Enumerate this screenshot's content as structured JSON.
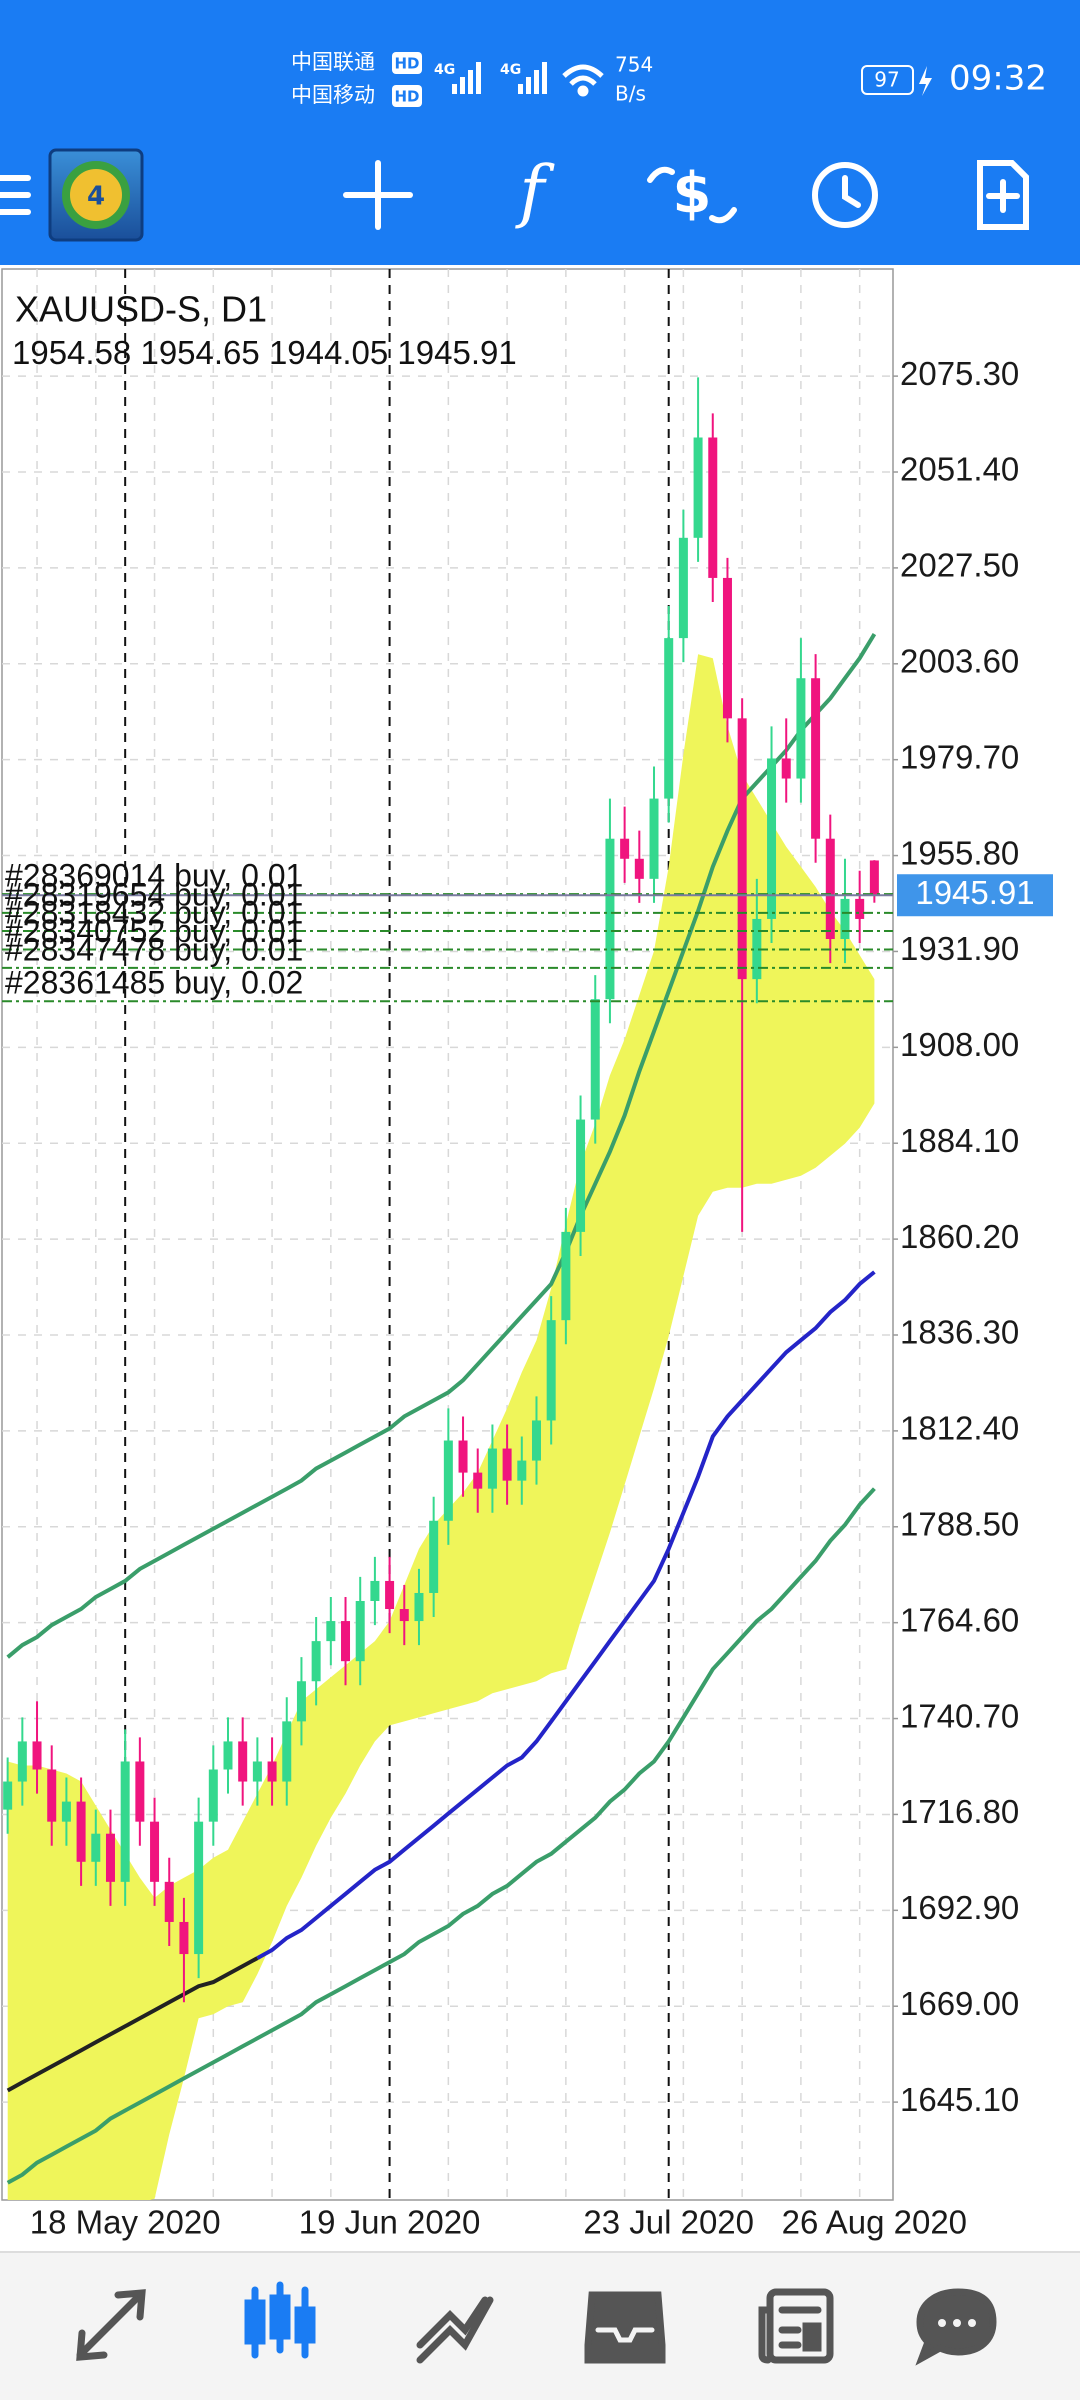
{
  "status_bar": {
    "carrier1": "中国联通",
    "carrier2": "中国移动",
    "hd": "HD",
    "network": "4G",
    "speed": "754",
    "speed_unit": "B/s",
    "battery": "97",
    "time": "09:32"
  },
  "chart_data": {
    "type": "candlestick",
    "title": "XAUUSD-S, D1",
    "categories": [
      null,
      null,
      null,
      null,
      null,
      null,
      null,
      null,
      "18 May 2020",
      null,
      null,
      null,
      null,
      null,
      null,
      null,
      null,
      null,
      null,
      null,
      null,
      null,
      null,
      null,
      null,
      null,
      "19 Jun 2020",
      null,
      null,
      null,
      null,
      null,
      null,
      null,
      null,
      null,
      null,
      null,
      null,
      null,
      null,
      null,
      null,
      null,
      null,
      "23 Jul 2020",
      null,
      null,
      null,
      null,
      null,
      null,
      null,
      null,
      null,
      null,
      null,
      null,
      null,
      "26 Aug 2020"
    ],
    "open": [
      1718,
      1725,
      1735,
      1728,
      1715,
      1720,
      1705,
      1712,
      1700,
      1730,
      1715,
      1700,
      1690,
      1682,
      1715,
      1728,
      1735,
      1725,
      1730,
      1725,
      1740,
      1750,
      1760,
      1765,
      1755,
      1770,
      1775,
      1768,
      1765,
      1772,
      1790,
      1810,
      1802,
      1798,
      1808,
      1800,
      1805,
      1815,
      1840,
      1862,
      1890,
      1920,
      1960,
      1955,
      1950,
      1970,
      2010,
      2035,
      2060,
      2025,
      1990,
      1925,
      1940,
      1980,
      1975,
      2000,
      1960,
      1935,
      1945,
      1954.58
    ],
    "high": [
      1731,
      1741,
      1745,
      1734,
      1726,
      1726,
      1718,
      1718,
      1738,
      1736,
      1721,
      1706,
      1696,
      1721,
      1734,
      1741,
      1741,
      1736,
      1736,
      1746,
      1756,
      1766,
      1771,
      1771,
      1776,
      1781,
      1781,
      1774,
      1778,
      1796,
      1818,
      1816,
      1808,
      1814,
      1814,
      1811,
      1821,
      1846,
      1868,
      1896,
      1926,
      1970,
      1968,
      1962,
      1978,
      2018,
      2042,
      2075,
      2066,
      2030,
      1995,
      1950,
      1988,
      1990,
      2010,
      2006,
      1966,
      1955,
      1952,
      1954.65
    ],
    "low": [
      1712,
      1719,
      1722,
      1709,
      1709,
      1699,
      1699,
      1694,
      1694,
      1709,
      1694,
      1684,
      1670,
      1676,
      1709,
      1722,
      1719,
      1719,
      1719,
      1719,
      1734,
      1744,
      1754,
      1749,
      1749,
      1764,
      1762,
      1759,
      1759,
      1766,
      1784,
      1796,
      1792,
      1792,
      1794,
      1794,
      1799,
      1809,
      1834,
      1856,
      1884,
      1914,
      1949,
      1944,
      1944,
      1964,
      2004,
      2029,
      2019,
      1984,
      1862,
      1919,
      1934,
      1969,
      1969,
      1954,
      1929,
      1929,
      1934,
      1944.05
    ],
    "close": [
      1725,
      1735,
      1728,
      1715,
      1720,
      1705,
      1712,
      1700,
      1730,
      1715,
      1700,
      1690,
      1682,
      1715,
      1728,
      1735,
      1725,
      1730,
      1725,
      1740,
      1750,
      1760,
      1765,
      1755,
      1770,
      1775,
      1768,
      1765,
      1772,
      1790,
      1810,
      1802,
      1798,
      1808,
      1800,
      1805,
      1815,
      1840,
      1862,
      1890,
      1920,
      1960,
      1955,
      1950,
      1970,
      2010,
      2035,
      2060,
      2025,
      1990,
      1925,
      1940,
      1980,
      1975,
      2000,
      1960,
      1935,
      1945,
      1940,
      1945.91
    ],
    "up_color": "#34d88e",
    "down_color": "#f0147e",
    "cloud": {
      "color": "#eff55a",
      "upper": [
        1730,
        1729,
        1729,
        1728,
        1727,
        1725,
        1719,
        1713,
        1707,
        1701,
        1696,
        1699,
        1701,
        1703,
        1706,
        1708,
        1715,
        1722,
        1729,
        1737,
        1745,
        1748,
        1751,
        1754,
        1757,
        1760,
        1765,
        1774,
        1783,
        1789,
        1793,
        1797,
        1802,
        1810,
        1818,
        1827,
        1835,
        1848,
        1864,
        1879,
        1889,
        1901,
        1910,
        1921,
        1932,
        1953,
        1981,
        2006,
        2005,
        1988,
        1976,
        1970,
        1964,
        1958,
        1953,
        1948,
        1942,
        1937,
        1931,
        1925
      ],
      "lower": [
        1616,
        1617,
        1617,
        1617,
        1618,
        1618,
        1619,
        1619,
        1619,
        1620,
        1621,
        1637,
        1651,
        1666,
        1667,
        1669,
        1670,
        1677,
        1685,
        1694,
        1701,
        1709,
        1716,
        1722,
        1729,
        1735,
        1739,
        1740,
        1741,
        1742,
        1743,
        1744,
        1745,
        1747,
        1748,
        1749,
        1750,
        1752,
        1753,
        1765,
        1776,
        1787,
        1799,
        1811,
        1823,
        1836,
        1851,
        1866,
        1872,
        1873,
        1873,
        1874,
        1874,
        1875,
        1876,
        1878,
        1881,
        1884,
        1888,
        1894
      ]
    },
    "indicators": [
      {
        "color": "#3a9e6a",
        "values": [
          1756,
          1759,
          1761,
          1764,
          1766,
          1768,
          1771,
          1773,
          1775,
          1778,
          1780,
          1782,
          1784,
          1786,
          1788,
          1790,
          1792,
          1794,
          1796,
          1798,
          1800,
          1803,
          1805,
          1807,
          1809,
          1811,
          1813,
          1816,
          1818,
          1820,
          1822,
          1825,
          1829,
          1833,
          1837,
          1841,
          1845,
          1849,
          1857,
          1866,
          1874,
          1882,
          1891,
          1902,
          1912,
          1922,
          1932,
          1942,
          1953,
          1962,
          1970,
          1974,
          1978,
          1982,
          1987,
          1991,
          1995,
          2000,
          2005,
          2011
        ]
      },
      {
        "color": "#3a9e6a",
        "values": [
          1625,
          1627,
          1630,
          1632,
          1634,
          1636,
          1638,
          1641,
          1643,
          1645,
          1647,
          1649,
          1651,
          1653,
          1655,
          1657,
          1659,
          1661,
          1663,
          1665,
          1667,
          1670,
          1672,
          1674,
          1676,
          1678,
          1680,
          1682,
          1685,
          1687,
          1689,
          1692,
          1694,
          1697,
          1699,
          1702,
          1705,
          1707,
          1710,
          1713,
          1716,
          1720,
          1723,
          1727,
          1730,
          1735,
          1741,
          1747,
          1753,
          1757,
          1761,
          1765,
          1768,
          1772,
          1776,
          1780,
          1785,
          1789,
          1794,
          1798
        ]
      },
      {
        "color": "#222222",
        "values": [
          1648,
          1650,
          1652,
          1654,
          1656,
          1658,
          1660,
          1662,
          1664,
          1666,
          1668,
          1670,
          1672,
          1674,
          1675,
          1677,
          1679,
          1681,
          null,
          null,
          null,
          null,
          null,
          null,
          null,
          null,
          null,
          null,
          null,
          null,
          null,
          null,
          null,
          null,
          null,
          null,
          null,
          null,
          null,
          null,
          null,
          null,
          null,
          null,
          null,
          null,
          null,
          null,
          null,
          null,
          null,
          null,
          null,
          null,
          null,
          null,
          null,
          null,
          null,
          null
        ]
      },
      {
        "color": "#2424c8",
        "values": [
          null,
          null,
          null,
          null,
          null,
          null,
          null,
          null,
          null,
          null,
          null,
          null,
          null,
          null,
          null,
          null,
          null,
          1681,
          1683,
          1686,
          1688,
          1691,
          1694,
          1697,
          1700,
          1703,
          1705,
          1708,
          1711,
          1714,
          1717,
          1720,
          1723,
          1726,
          1729,
          1731,
          1735,
          1740,
          1745,
          1750,
          1755,
          1760,
          1765,
          1770,
          1775,
          1783,
          1792,
          1801,
          1811,
          1816,
          1820,
          1824,
          1828,
          1832,
          1835,
          1838,
          1842,
          1845,
          1849,
          1852
        ]
      }
    ],
    "orders": [
      {
        "label": "#28369014 buy, 0.01",
        "price": 1946.2
      },
      {
        "label": "#28319654 buy, 0.01",
        "price": 1941.5
      },
      {
        "label": "#28318432 buy, 0.01",
        "price": 1937.0
      },
      {
        "label": "#28340752 buy, 0.01",
        "price": 1932.4
      },
      {
        "label": "#28347478 buy, 0.01",
        "price": 1927.8
      },
      {
        "label": "#28361485 buy, 0.02",
        "price": 1919.5
      }
    ],
    "ylim": [
      1620.7,
      2102.0
    ],
    "yticks": [
      {
        "value": 2075.3,
        "label": "2075.30"
      },
      {
        "value": 2051.4,
        "label": "2051.40"
      },
      {
        "value": 2027.5,
        "label": "2027.50"
      },
      {
        "value": 2003.6,
        "label": "2003.60"
      },
      {
        "value": 1979.7,
        "label": "1979.70"
      },
      {
        "value": 1955.8,
        "label": "1955.80"
      },
      {
        "value": 1931.9,
        "label": "1931.90"
      },
      {
        "value": 1908.0,
        "label": "1908.00"
      },
      {
        "value": 1884.1,
        "label": "1884.10"
      },
      {
        "value": 1860.2,
        "label": "1860.20"
      },
      {
        "value": 1836.3,
        "label": "1836.30"
      },
      {
        "value": 1812.4,
        "label": "1812.40"
      },
      {
        "value": 1788.5,
        "label": "1788.50"
      },
      {
        "value": 1764.6,
        "label": "1764.60"
      },
      {
        "value": 1740.7,
        "label": "1740.70"
      },
      {
        "value": 1716.8,
        "label": "1716.80"
      },
      {
        "value": 1692.9,
        "label": "1692.90"
      },
      {
        "value": 1669.0,
        "label": "1669.00"
      },
      {
        "value": 1645.1,
        "label": "1645.10"
      }
    ],
    "grid": true
  }
}
